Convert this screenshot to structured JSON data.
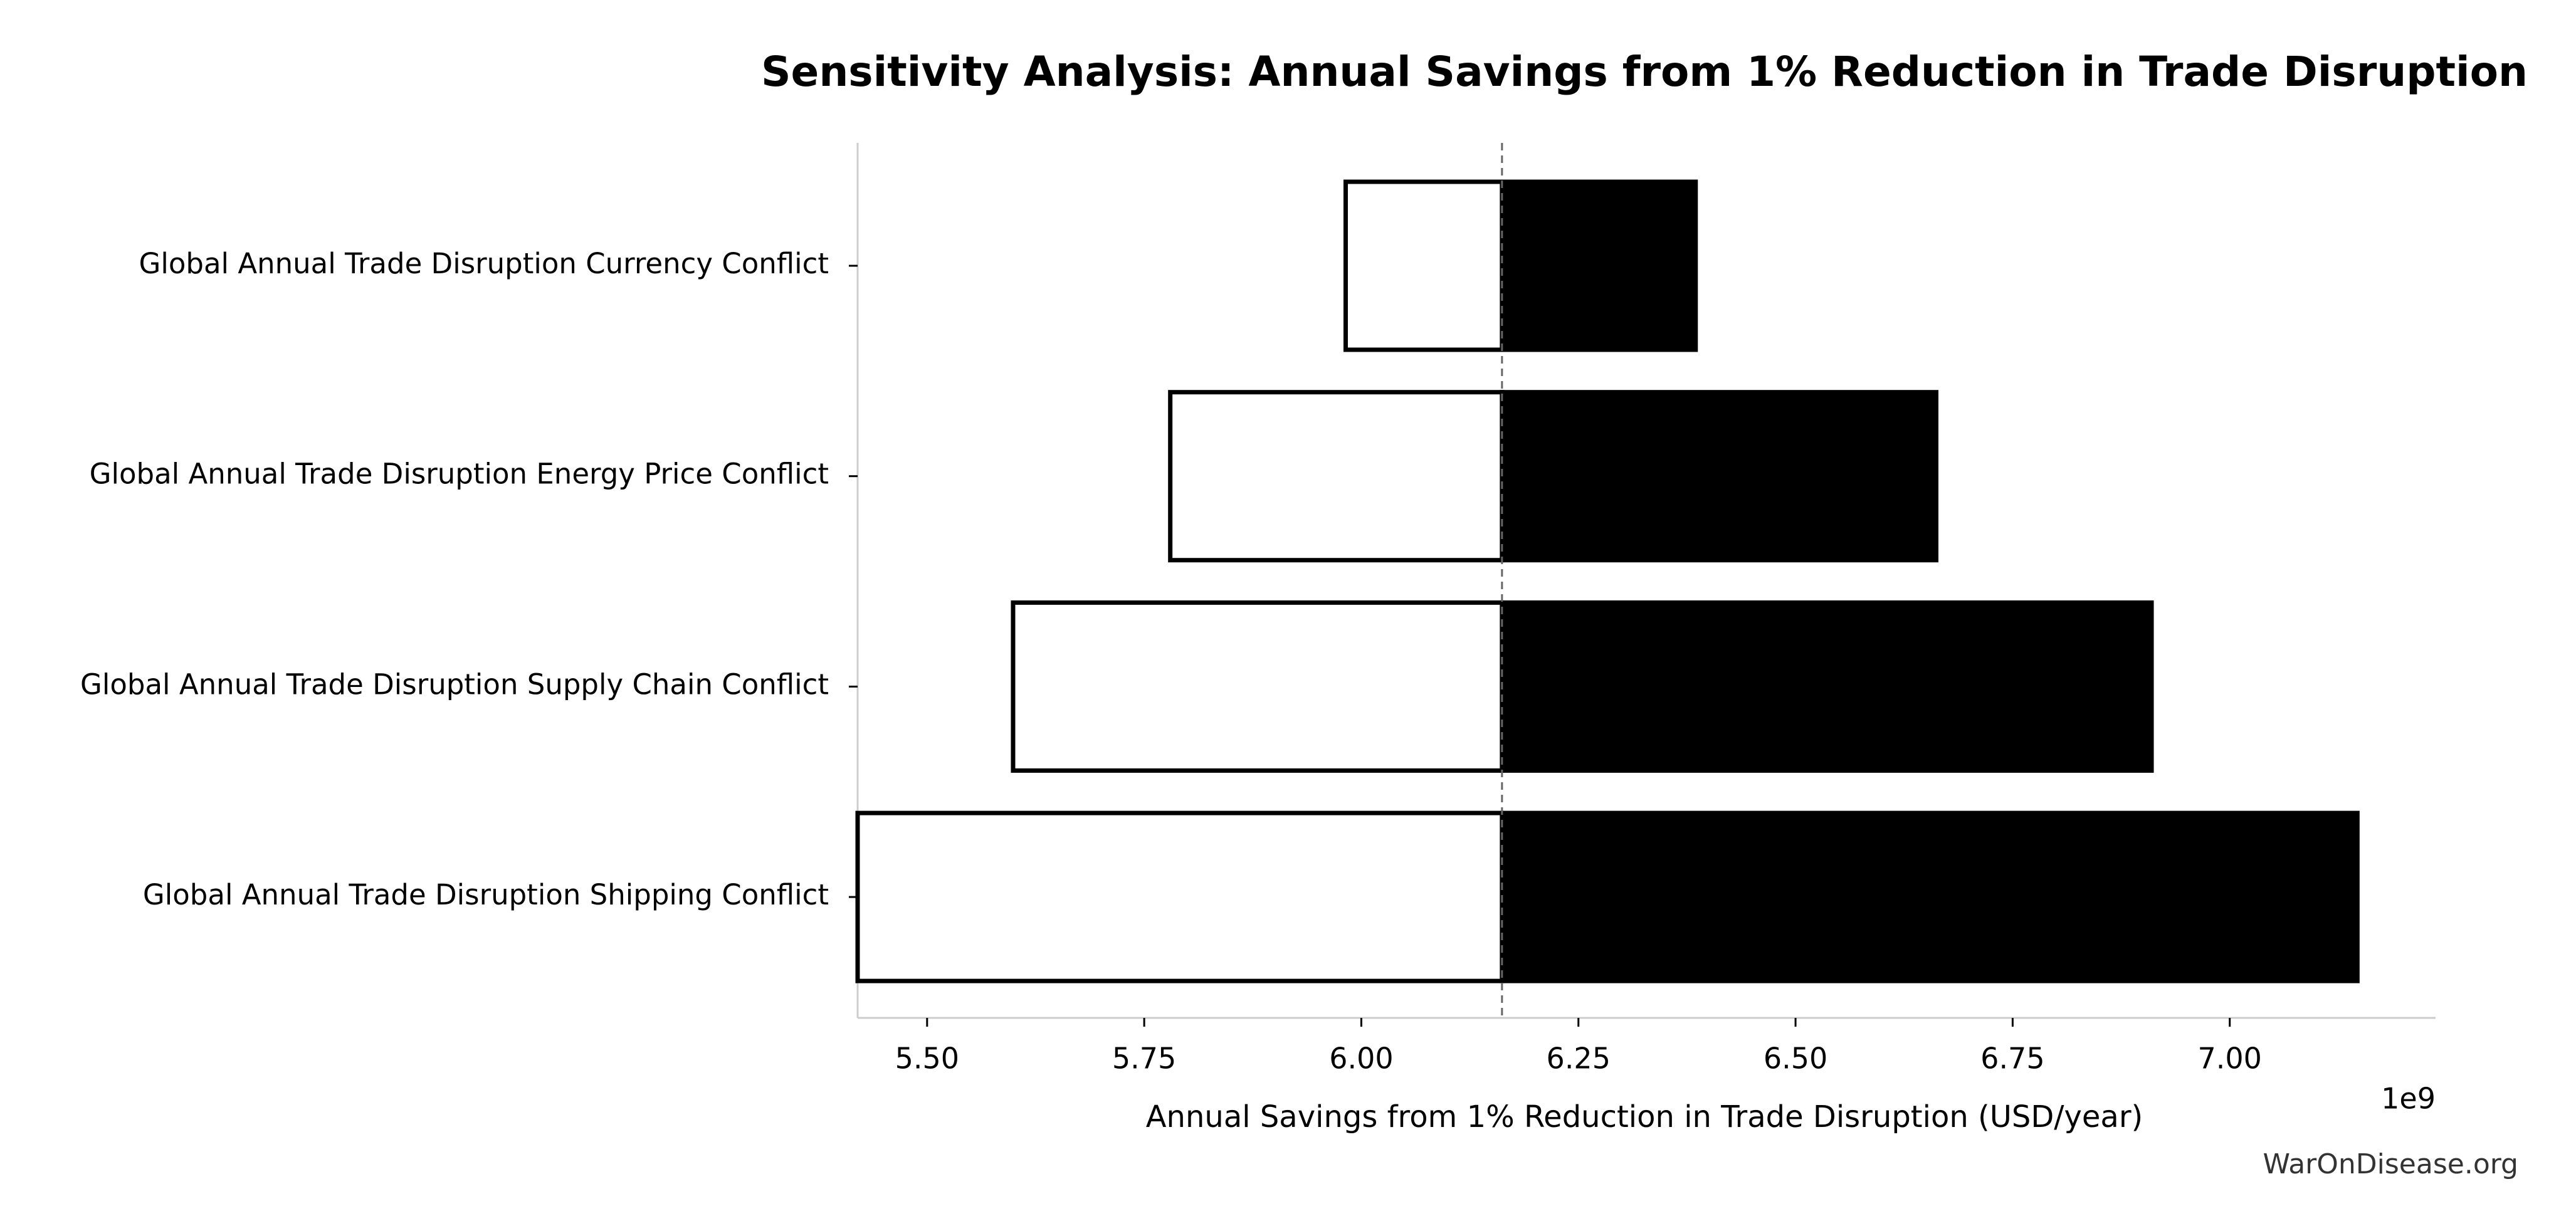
{
  "chart_data": {
    "type": "tornado",
    "title": "Sensitivity Analysis: Annual Savings from 1% Reduction in Trade Disruption",
    "x_label": "Annual Savings from 1% Reduction in Trade Disruption (USD/year)",
    "x_offset_label": "1e9",
    "watermark": "WarOnDisease.org",
    "categories": [
      "Global Annual Trade Disruption Currency Conflict",
      "Global Annual Trade Disruption Energy Price Conflict",
      "Global Annual Trade Disruption Supply Chain Conflict",
      "Global Annual Trade Disruption Shipping Conflict"
    ],
    "low_values": [
      5.982,
      5.78,
      5.599,
      5.42
    ],
    "high_values": [
      6.385,
      6.662,
      6.91,
      7.147
    ],
    "baseline": 6.162,
    "low_color": "#ffffff",
    "high_color": "#000000",
    "edge_color": "#000000",
    "xlim": [
      5.42,
      7.237
    ],
    "xticks": [
      {
        "value": 5.5,
        "label": "5.50"
      },
      {
        "value": 5.75,
        "label": "5.75"
      },
      {
        "value": 6.0,
        "label": "6.00"
      },
      {
        "value": 6.25,
        "label": "6.25"
      },
      {
        "value": 6.5,
        "label": "6.50"
      },
      {
        "value": 6.75,
        "label": "6.75"
      },
      {
        "value": 7.0,
        "label": "7.00"
      }
    ]
  }
}
